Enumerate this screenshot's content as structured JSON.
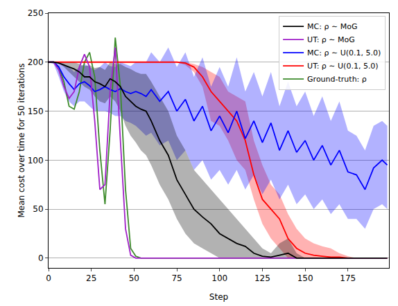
{
  "chart_data": {
    "type": "line",
    "x_label": "Step",
    "y_label": "Mean cost over time for 50 iterations",
    "xlim": [
      0,
      199
    ],
    "ylim": [
      -10,
      250
    ],
    "xticks": [
      0,
      25,
      50,
      75,
      100,
      125,
      150,
      175
    ],
    "yticks": [
      0,
      50,
      100,
      150,
      200,
      250
    ],
    "grid": "y",
    "legend": "upper right",
    "x": [
      0,
      3,
      6,
      9,
      12,
      15,
      18,
      21,
      24,
      27,
      30,
      33,
      36,
      39,
      42,
      45,
      48,
      51,
      54,
      57,
      60,
      65,
      70,
      75,
      80,
      85,
      90,
      95,
      100,
      105,
      110,
      115,
      120,
      125,
      130,
      135,
      140,
      145,
      150,
      155,
      160,
      165,
      170,
      175,
      180,
      185,
      190,
      195,
      198
    ],
    "series": [
      {
        "name": "Ground-truth: ρ",
        "color": "#3d8b2b",
        "values": [
          200,
          200,
          195,
          180,
          155,
          152,
          170,
          200,
          210,
          185,
          110,
          55,
          130,
          225,
          175,
          70,
          10,
          2,
          0,
          0,
          0,
          0,
          0,
          0,
          0,
          0,
          0,
          0,
          0,
          0,
          0,
          0,
          0,
          0,
          0,
          0,
          0,
          0,
          0,
          0,
          0,
          0,
          0,
          0,
          0,
          0,
          0,
          0,
          0
        ]
      },
      {
        "name": "UT: ρ ∼ U(0.1, 5.0)",
        "color": "#ff0000",
        "values": [
          200,
          200,
          200,
          200,
          200,
          200,
          200,
          200,
          200,
          200,
          200,
          200,
          200,
          200,
          200,
          200,
          200,
          200,
          200,
          200,
          200,
          200,
          200,
          200,
          199,
          195,
          185,
          170,
          160,
          150,
          140,
          120,
          85,
          60,
          50,
          40,
          20,
          10,
          5,
          3,
          2,
          1,
          1,
          0,
          0,
          0,
          0,
          0,
          0
        ],
        "lower": [
          200,
          200,
          200,
          200,
          200,
          200,
          200,
          200,
          200,
          200,
          200,
          200,
          200,
          200,
          200,
          200,
          200,
          200,
          200,
          200,
          200,
          200,
          200,
          200,
          197,
          190,
          175,
          140,
          135,
          120,
          100,
          90,
          60,
          35,
          20,
          10,
          0,
          0,
          0,
          0,
          0,
          0,
          0,
          0,
          0,
          0,
          0,
          0,
          0
        ],
        "upper": [
          200,
          200,
          200,
          200,
          200,
          200,
          200,
          200,
          200,
          200,
          200,
          200,
          200,
          200,
          200,
          200,
          200,
          200,
          200,
          200,
          200,
          200,
          200,
          200,
          200,
          198,
          195,
          190,
          185,
          170,
          165,
          160,
          120,
          95,
          75,
          65,
          45,
          30,
          20,
          15,
          12,
          10,
          5,
          2,
          0,
          0,
          0,
          0,
          0
        ]
      },
      {
        "name": "MC: ρ ∼ U(0.1, 5.0)",
        "color": "#0000ff",
        "values": [
          200,
          200,
          195,
          185,
          178,
          172,
          178,
          180,
          176,
          170,
          172,
          175,
          172,
          170,
          173,
          170,
          168,
          170,
          168,
          165,
          172,
          160,
          170,
          150,
          162,
          140,
          155,
          130,
          145,
          128,
          150,
          122,
          140,
          118,
          138,
          110,
          130,
          108,
          120,
          100,
          115,
          95,
          110,
          88,
          85,
          70,
          92,
          100,
          95
        ],
        "lower": [
          200,
          198,
          185,
          170,
          160,
          155,
          160,
          160,
          155,
          150,
          150,
          150,
          148,
          145,
          145,
          140,
          138,
          135,
          130,
          125,
          128,
          115,
          120,
          100,
          110,
          90,
          100,
          80,
          90,
          75,
          90,
          70,
          85,
          65,
          80,
          60,
          75,
          55,
          65,
          50,
          60,
          45,
          55,
          40,
          40,
          30,
          50,
          55,
          50
        ],
        "upper": [
          200,
          200,
          200,
          198,
          195,
          190,
          195,
          198,
          195,
          192,
          195,
          200,
          196,
          195,
          200,
          198,
          196,
          200,
          200,
          200,
          210,
          200,
          215,
          195,
          210,
          185,
          205,
          175,
          195,
          175,
          205,
          170,
          190,
          165,
          190,
          155,
          180,
          155,
          170,
          145,
          165,
          140,
          160,
          130,
          125,
          110,
          135,
          140,
          135
        ]
      },
      {
        "name": "UT: ρ ∼ MoG",
        "color": "#a020c8",
        "values": [
          200,
          200,
          192,
          175,
          163,
          170,
          195,
          208,
          195,
          140,
          70,
          75,
          170,
          215,
          120,
          30,
          3,
          0,
          0,
          0,
          0,
          0,
          0,
          0,
          0,
          0,
          0,
          0,
          0,
          0,
          0,
          0,
          0,
          0,
          0,
          0,
          0,
          0,
          0,
          0,
          0,
          0,
          0,
          0,
          0,
          0,
          0,
          0,
          0
        ]
      },
      {
        "name": "MC: ρ ∼ MoG",
        "color": "#000000",
        "values": [
          200,
          200,
          199,
          197,
          195,
          193,
          190,
          185,
          185,
          180,
          178,
          175,
          183,
          180,
          175,
          165,
          160,
          155,
          152,
          150,
          140,
          120,
          105,
          80,
          65,
          50,
          42,
          35,
          25,
          20,
          15,
          12,
          5,
          2,
          1,
          3,
          5,
          0,
          0,
          0,
          0,
          0,
          0,
          0,
          0,
          0,
          0,
          0,
          0
        ],
        "lower": [
          200,
          200,
          199,
          195,
          190,
          185,
          180,
          175,
          172,
          165,
          160,
          158,
          165,
          160,
          150,
          135,
          125,
          118,
          110,
          105,
          95,
          75,
          60,
          40,
          25,
          15,
          10,
          5,
          0,
          0,
          0,
          0,
          0,
          0,
          0,
          0,
          0,
          0,
          0,
          0,
          0,
          0,
          0,
          0,
          0,
          0,
          0,
          0,
          0
        ],
        "upper": [
          200,
          200,
          200,
          200,
          200,
          200,
          198,
          196,
          197,
          194,
          195,
          192,
          200,
          198,
          198,
          195,
          193,
          190,
          188,
          188,
          180,
          165,
          150,
          125,
          110,
          90,
          80,
          70,
          60,
          50,
          40,
          30,
          20,
          10,
          5,
          15,
          20,
          5,
          0,
          0,
          0,
          0,
          0,
          0,
          0,
          0,
          0,
          0,
          0
        ]
      }
    ]
  }
}
